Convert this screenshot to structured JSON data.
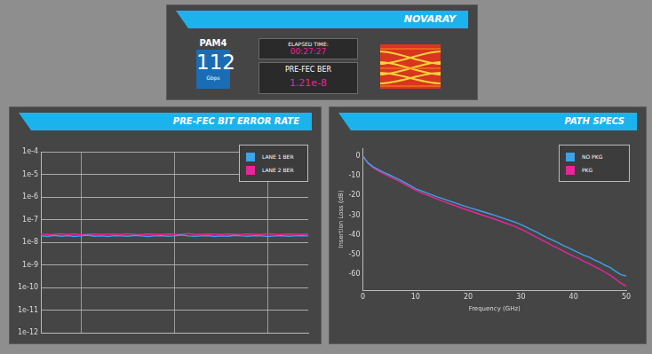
{
  "header": {
    "brand": "NOVARAY",
    "modulation": "PAM4",
    "rate": 112,
    "rate_unit": "Gbps",
    "elapsed_label": "ELAPSED TIME:",
    "elapsed": "00:27:27",
    "ber_label": "PRE-FEC BER",
    "ber": "1.21e-8"
  },
  "chart_data": [
    {
      "type": "line",
      "title": "PRE-FEC BIT ERROR RATE",
      "x": [
        0,
        1,
        2,
        3,
        4,
        5,
        6,
        7,
        8,
        9,
        10,
        11,
        12,
        13,
        14,
        15,
        16,
        17,
        18,
        19,
        20,
        21,
        22,
        23,
        24,
        25,
        26,
        27,
        28,
        29,
        30,
        31,
        32,
        33,
        34,
        35,
        36,
        37,
        38,
        39,
        40
      ],
      "xlim": [
        0,
        40
      ],
      "xticks": [
        6,
        20,
        34
      ],
      "ylim": [
        1e-12,
        0.0001
      ],
      "yticks": [
        {
          "value": 1e-12,
          "label": "1e-12"
        },
        {
          "value": 1e-11,
          "label": "1e-11"
        },
        {
          "value": 1e-10,
          "label": "1e-10"
        },
        {
          "value": 1e-09,
          "label": "1e-9"
        },
        {
          "value": 1e-08,
          "label": "1e-8"
        },
        {
          "value": 1e-07,
          "label": "1e-7"
        },
        {
          "value": 1e-06,
          "label": "1e-6"
        },
        {
          "value": 1e-05,
          "label": "1e-5"
        },
        {
          "value": 0.0001,
          "label": "1e-4"
        }
      ],
      "log": "y",
      "grid": true,
      "legend": "upper right",
      "tick_labels": "y",
      "series": [
        {
          "name": "LANE 1 BER",
          "color": "#3fa1e6",
          "values": [
            1.9e-08,
            1.8e-08,
            2e-08,
            1.85e-08,
            1.95e-08,
            1.8e-08,
            1.9e-08,
            2.05e-08,
            1.85e-08,
            1.9e-08,
            1.8e-08,
            1.95e-08,
            1.9e-08,
            1.85e-08,
            2e-08,
            1.9e-08,
            1.8e-08,
            1.9e-08,
            1.95e-08,
            1.85e-08,
            1.9e-08,
            2.1e-08,
            1.9e-08,
            1.85e-08,
            1.9e-08,
            1.95e-08,
            1.8e-08,
            1.9e-08,
            1.85e-08,
            2e-08,
            1.9e-08,
            1.85e-08,
            1.95e-08,
            1.9e-08,
            1.8e-08,
            1.9e-08,
            1.95e-08,
            1.85e-08,
            1.9e-08,
            1.95e-08,
            1.9e-08
          ]
        },
        {
          "name": "LANE 2 BER",
          "color": "#e8259a",
          "values": [
            2.3e-08,
            2.2e-08,
            2.25e-08,
            2.35e-08,
            2.2e-08,
            2.3e-08,
            2.15e-08,
            2.25e-08,
            2.3e-08,
            2.2e-08,
            2.25e-08,
            2.3e-08,
            2.2e-08,
            2.35e-08,
            2.25e-08,
            2.2e-08,
            2.3e-08,
            2.25e-08,
            2.2e-08,
            2.3e-08,
            2.25e-08,
            2.2e-08,
            2.4e-08,
            2.25e-08,
            2.2e-08,
            2.3e-08,
            2.25e-08,
            2.2e-08,
            2.3e-08,
            2.25e-08,
            2.2e-08,
            2.3e-08,
            2.25e-08,
            2.2e-08,
            2.35e-08,
            2.25e-08,
            2.2e-08,
            2.3e-08,
            2.25e-08,
            2.2e-08,
            2.3e-08
          ]
        }
      ]
    },
    {
      "type": "line",
      "title": "PATH SPECS",
      "x_label": "Frequency (GHz)",
      "y_label": "Insertion Loss (dB)",
      "x": [
        0,
        1,
        2,
        3,
        4,
        5,
        6,
        7,
        8,
        9,
        10,
        11,
        12,
        13,
        14,
        15,
        16,
        17,
        18,
        19,
        20,
        21,
        22,
        23,
        24,
        25,
        26,
        27,
        28,
        29,
        30,
        31,
        32,
        33,
        34,
        35,
        36,
        37,
        38,
        39,
        40,
        41,
        42,
        43,
        44,
        45,
        46,
        47,
        48,
        49,
        50
      ],
      "xlim": [
        0,
        50
      ],
      "xticks": [
        0,
        10,
        20,
        30,
        40,
        50
      ],
      "ylim": [
        -68,
        4
      ],
      "yticks": [
        -60,
        -50,
        -40,
        -30,
        -20,
        -10,
        0
      ],
      "grid": false,
      "legend": "upper right",
      "series": [
        {
          "name": "NO PKG",
          "color": "#3fa1e6",
          "values": [
            0,
            -3.5,
            -5.5,
            -7.0,
            -8.3,
            -9.5,
            -10.8,
            -12.0,
            -13.5,
            -15.0,
            -16.5,
            -17.5,
            -18.6,
            -19.6,
            -20.6,
            -21.5,
            -22.4,
            -23.3,
            -24.2,
            -25.1,
            -26.0,
            -26.8,
            -27.6,
            -28.4,
            -29.2,
            -30.0,
            -30.9,
            -31.8,
            -32.7,
            -33.6,
            -34.8,
            -36.0,
            -37.3,
            -38.6,
            -40.0,
            -41.4,
            -42.6,
            -43.9,
            -45.3,
            -46.5,
            -47.8,
            -49.0,
            -50.4,
            -51.3,
            -52.8,
            -53.9,
            -55.4,
            -56.6,
            -58.5,
            -60.2,
            -60.8
          ]
        },
        {
          "name": "PKG",
          "color": "#e8259a",
          "values": [
            0,
            -3.8,
            -6.0,
            -7.6,
            -9.0,
            -10.3,
            -11.6,
            -12.9,
            -14.4,
            -15.9,
            -17.3,
            -18.4,
            -19.6,
            -20.6,
            -21.7,
            -22.7,
            -23.7,
            -24.7,
            -25.6,
            -26.6,
            -27.5,
            -28.4,
            -29.3,
            -30.2,
            -31.1,
            -32.0,
            -32.9,
            -33.9,
            -34.9,
            -35.9,
            -37.1,
            -38.4,
            -39.8,
            -41.2,
            -42.6,
            -44.0,
            -45.4,
            -46.7,
            -48.1,
            -49.5,
            -50.8,
            -52.0,
            -53.5,
            -54.6,
            -56.1,
            -57.4,
            -59.0,
            -60.5,
            -62.4,
            -64.5,
            -66.0
          ]
        }
      ]
    }
  ]
}
